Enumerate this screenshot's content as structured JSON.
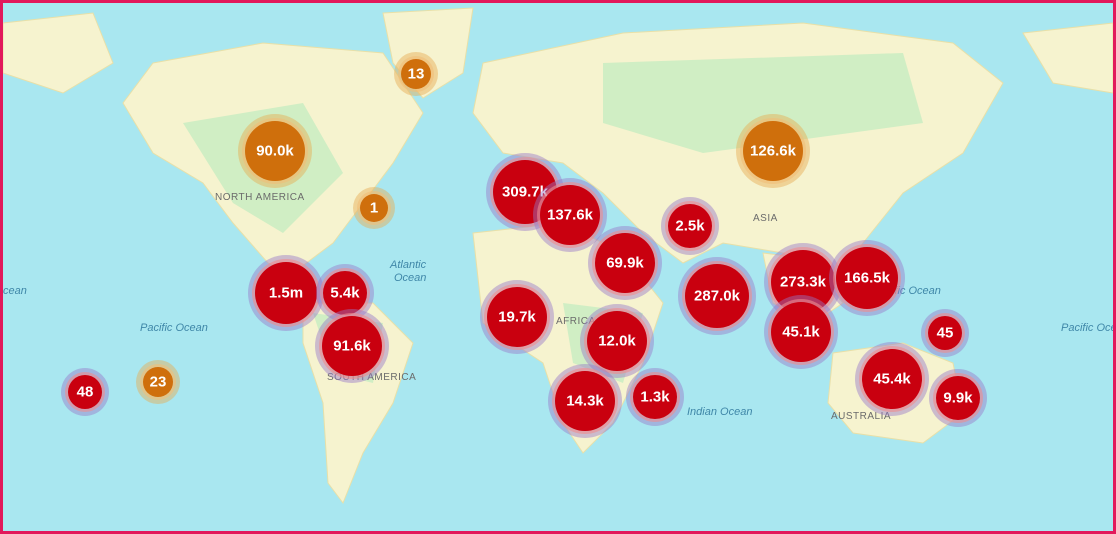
{
  "map_labels": [
    "NORTH AMERICA",
    "Atlantic",
    "Ocean",
    "Pacific Ocean",
    "cean",
    "SOUTH AMERICA",
    "AFRICA",
    "ASIA",
    "Pacific Ocean",
    "Indian Ocean",
    "AUSTRALIA",
    "Pacific Oce"
  ],
  "clusters": [
    {
      "label": "13",
      "color": "#cf6f0c"
    },
    {
      "label": "90.0k",
      "color": "#cf6f0c"
    },
    {
      "label": "1",
      "color": "#cf6f0c"
    },
    {
      "label": "126.6k",
      "color": "#cf6f0c"
    },
    {
      "label": "309.7k",
      "color": "#c9000f"
    },
    {
      "label": "137.6k",
      "color": "#c9000f"
    },
    {
      "label": "2.5k",
      "color": "#c9000f"
    },
    {
      "label": "69.9k",
      "color": "#c9000f"
    },
    {
      "label": "1.5m",
      "color": "#c9000f"
    },
    {
      "label": "5.4k",
      "color": "#c9000f"
    },
    {
      "label": "91.6k",
      "color": "#c9000f"
    },
    {
      "label": "19.7k",
      "color": "#c9000f"
    },
    {
      "label": "12.0k",
      "color": "#c9000f"
    },
    {
      "label": "287.0k",
      "color": "#c9000f"
    },
    {
      "label": "273.3k",
      "color": "#c9000f"
    },
    {
      "label": "166.5k",
      "color": "#c9000f"
    },
    {
      "label": "45.1k",
      "color": "#c9000f"
    },
    {
      "label": "45",
      "color": "#c9000f"
    },
    {
      "label": "48",
      "color": "#c9000f"
    },
    {
      "label": "23",
      "color": "#cf6f0c"
    },
    {
      "label": "14.3k",
      "color": "#c9000f"
    },
    {
      "label": "1.3k",
      "color": "#c9000f"
    },
    {
      "label": "45.4k",
      "color": "#c9000f"
    },
    {
      "label": "9.9k",
      "color": "#c9000f"
    }
  ]
}
